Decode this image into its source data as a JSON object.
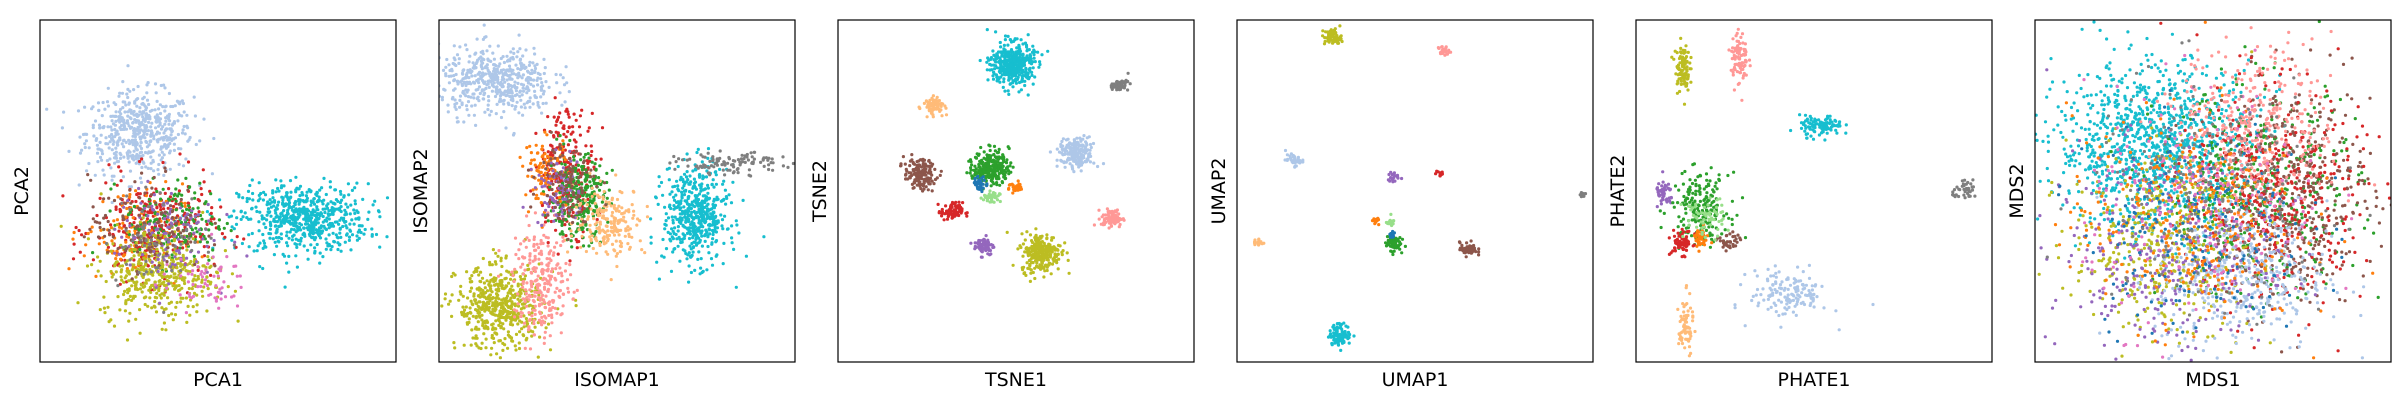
{
  "chart_data": [
    {
      "type": "scatter",
      "title": "",
      "xlabel": "PCA1",
      "ylabel": "PCA2",
      "xlim": [
        0,
        10
      ],
      "ylim": [
        0,
        10
      ],
      "grid": false,
      "legend": "none",
      "clusters": [
        {
          "color": "#aec7e8",
          "center": [
            2.8,
            6.7
          ],
          "spread": [
            0.75,
            0.6
          ],
          "count": 520
        },
        {
          "color": "#17becf",
          "center": [
            7.4,
            4.2
          ],
          "spread": [
            0.9,
            0.5
          ],
          "count": 620
        },
        {
          "color": "#d62728",
          "center": [
            3.2,
            3.9
          ],
          "spread": [
            0.85,
            0.75
          ],
          "count": 300
        },
        {
          "color": "#ff7f0e",
          "center": [
            2.6,
            3.8
          ],
          "spread": [
            0.7,
            0.7
          ],
          "count": 120
        },
        {
          "color": "#2ca02c",
          "center": [
            3.8,
            4.1
          ],
          "spread": [
            0.7,
            0.6
          ],
          "count": 150
        },
        {
          "color": "#bcbd22",
          "center": [
            3.3,
            2.6
          ],
          "spread": [
            0.8,
            0.65
          ],
          "count": 420
        },
        {
          "color": "#9467bd",
          "center": [
            3.5,
            3.8
          ],
          "spread": [
            0.7,
            0.7
          ],
          "count": 120
        },
        {
          "color": "#e377c2",
          "center": [
            4.6,
            2.3
          ],
          "spread": [
            0.6,
            0.4
          ],
          "count": 60
        },
        {
          "color": "#8c564b",
          "center": [
            3.0,
            4.0
          ],
          "spread": [
            0.8,
            0.7
          ],
          "count": 120
        },
        {
          "color": "#7f7f7f",
          "center": [
            3.4,
            3.6
          ],
          "spread": [
            0.8,
            0.7
          ],
          "count": 60
        }
      ]
    },
    {
      "type": "scatter",
      "title": "",
      "xlabel": "ISOMAP1",
      "ylabel": "ISOMAP2",
      "xlim": [
        0,
        10
      ],
      "ylim": [
        0,
        10
      ],
      "grid": false,
      "legend": "none",
      "clusters": [
        {
          "color": "#aec7e8",
          "center": [
            1.6,
            8.2
          ],
          "spread": [
            0.8,
            0.5
          ],
          "count": 500
        },
        {
          "color": "#17becf",
          "center": [
            7.2,
            4.3
          ],
          "spread": [
            0.45,
            0.7
          ],
          "count": 520
        },
        {
          "color": "#7f7f7f",
          "center": [
            8.3,
            5.8
          ],
          "spread": [
            0.8,
            0.15
          ],
          "count": 110
        },
        {
          "color": "#d62728",
          "center": [
            3.6,
            5.6
          ],
          "spread": [
            0.4,
            0.9
          ],
          "count": 280
        },
        {
          "color": "#2ca02c",
          "center": [
            3.9,
            4.8
          ],
          "spread": [
            0.4,
            0.6
          ],
          "count": 280
        },
        {
          "color": "#ff7f0e",
          "center": [
            3.0,
            5.6
          ],
          "spread": [
            0.3,
            0.5
          ],
          "count": 100
        },
        {
          "color": "#ffbb78",
          "center": [
            4.8,
            4.1
          ],
          "spread": [
            0.5,
            0.5
          ],
          "count": 200
        },
        {
          "color": "#bcbd22",
          "center": [
            1.7,
            1.6
          ],
          "spread": [
            0.6,
            0.6
          ],
          "count": 520
        },
        {
          "color": "#ff9896",
          "center": [
            2.9,
            2.3
          ],
          "spread": [
            0.4,
            0.8
          ],
          "count": 260
        },
        {
          "color": "#9467bd",
          "center": [
            3.3,
            5.0
          ],
          "spread": [
            0.3,
            0.5
          ],
          "count": 80
        },
        {
          "color": "#8c564b",
          "center": [
            3.6,
            5.3
          ],
          "spread": [
            0.4,
            0.6
          ],
          "count": 100
        }
      ]
    },
    {
      "type": "scatter",
      "title": "",
      "xlabel": "TSNE1",
      "ylabel": "TSNE2",
      "xlim": [
        0,
        10
      ],
      "ylim": [
        0,
        10
      ],
      "grid": false,
      "legend": "none",
      "clusters": [
        {
          "color": "#17becf",
          "center": [
            4.9,
            8.7
          ],
          "spread": [
            0.3,
            0.32
          ],
          "count": 420
        },
        {
          "color": "#7f7f7f",
          "center": [
            7.9,
            8.1
          ],
          "spread": [
            0.13,
            0.08
          ],
          "count": 60
        },
        {
          "color": "#ffbb78",
          "center": [
            2.7,
            7.5
          ],
          "spread": [
            0.15,
            0.12
          ],
          "count": 80
        },
        {
          "color": "#8c564b",
          "center": [
            2.3,
            5.5
          ],
          "spread": [
            0.22,
            0.22
          ],
          "count": 160
        },
        {
          "color": "#2ca02c",
          "center": [
            4.3,
            5.7
          ],
          "spread": [
            0.25,
            0.25
          ],
          "count": 260
        },
        {
          "color": "#1f77b4",
          "center": [
            4.0,
            5.2
          ],
          "spread": [
            0.1,
            0.1
          ],
          "count": 40
        },
        {
          "color": "#aec7e8",
          "center": [
            6.7,
            6.1
          ],
          "spread": [
            0.25,
            0.22
          ],
          "count": 200
        },
        {
          "color": "#ff7f0e",
          "center": [
            5.0,
            5.1
          ],
          "spread": [
            0.1,
            0.08
          ],
          "count": 30
        },
        {
          "color": "#98df8a",
          "center": [
            4.3,
            4.8
          ],
          "spread": [
            0.12,
            0.1
          ],
          "count": 40
        },
        {
          "color": "#d62728",
          "center": [
            3.2,
            4.4
          ],
          "spread": [
            0.15,
            0.13
          ],
          "count": 80
        },
        {
          "color": "#ff9896",
          "center": [
            7.7,
            4.2
          ],
          "spread": [
            0.15,
            0.13
          ],
          "count": 80
        },
        {
          "color": "#9467bd",
          "center": [
            4.1,
            3.4
          ],
          "spread": [
            0.14,
            0.14
          ],
          "count": 70
        },
        {
          "color": "#bcbd22",
          "center": [
            5.7,
            3.2
          ],
          "spread": [
            0.28,
            0.28
          ],
          "count": 260
        }
      ]
    },
    {
      "type": "scatter",
      "title": "",
      "xlabel": "UMAP1",
      "ylabel": "UMAP2",
      "xlim": [
        0,
        10
      ],
      "ylim": [
        0,
        10
      ],
      "grid": false,
      "legend": "none",
      "clusters": [
        {
          "color": "#bcbd22",
          "center": [
            2.7,
            9.5
          ],
          "spread": [
            0.12,
            0.12
          ],
          "count": 80
        },
        {
          "color": "#ff9896",
          "center": [
            5.8,
            9.1
          ],
          "spread": [
            0.08,
            0.07
          ],
          "count": 25
        },
        {
          "color": "#aec7e8",
          "center": [
            1.6,
            5.9
          ],
          "spread": [
            0.12,
            0.08
          ],
          "count": 40
        },
        {
          "color": "#9467bd",
          "center": [
            4.4,
            5.4
          ],
          "spread": [
            0.08,
            0.08
          ],
          "count": 20
        },
        {
          "color": "#d62728",
          "center": [
            5.7,
            5.5
          ],
          "spread": [
            0.06,
            0.06
          ],
          "count": 15
        },
        {
          "color": "#7f7f7f",
          "center": [
            9.7,
            4.9
          ],
          "spread": [
            0.05,
            0.05
          ],
          "count": 10
        },
        {
          "color": "#2ca02c",
          "center": [
            4.4,
            3.5
          ],
          "spread": [
            0.1,
            0.12
          ],
          "count": 80
        },
        {
          "color": "#1f77b4",
          "center": [
            4.35,
            3.7
          ],
          "spread": [
            0.05,
            0.06
          ],
          "count": 20
        },
        {
          "color": "#98df8a",
          "center": [
            4.3,
            4.1
          ],
          "spread": [
            0.06,
            0.06
          ],
          "count": 20
        },
        {
          "color": "#ff7f0e",
          "center": [
            3.9,
            4.1
          ],
          "spread": [
            0.05,
            0.05
          ],
          "count": 15
        },
        {
          "color": "#8c564b",
          "center": [
            6.5,
            3.3
          ],
          "spread": [
            0.12,
            0.1
          ],
          "count": 50
        },
        {
          "color": "#ffbb78",
          "center": [
            0.6,
            3.5
          ],
          "spread": [
            0.07,
            0.06
          ],
          "count": 20
        },
        {
          "color": "#17becf",
          "center": [
            2.9,
            0.8
          ],
          "spread": [
            0.15,
            0.15
          ],
          "count": 110
        }
      ]
    },
    {
      "type": "scatter",
      "title": "",
      "xlabel": "PHATE1",
      "ylabel": "PHATE2",
      "xlim": [
        0,
        10
      ],
      "ylim": [
        0,
        10
      ],
      "grid": false,
      "legend": "none",
      "clusters": [
        {
          "color": "#bcbd22",
          "center": [
            1.3,
            8.6
          ],
          "spread": [
            0.1,
            0.35
          ],
          "count": 100
        },
        {
          "color": "#ff9896",
          "center": [
            2.9,
            8.9
          ],
          "spread": [
            0.12,
            0.4
          ],
          "count": 90
        },
        {
          "color": "#17becf",
          "center": [
            5.2,
            6.9
          ],
          "spread": [
            0.3,
            0.15
          ],
          "count": 110
        },
        {
          "color": "#7f7f7f",
          "center": [
            9.3,
            5.0
          ],
          "spread": [
            0.2,
            0.12
          ],
          "count": 40
        },
        {
          "color": "#9467bd",
          "center": [
            0.8,
            4.9
          ],
          "spread": [
            0.12,
            0.2
          ],
          "count": 50
        },
        {
          "color": "#2ca02c",
          "center": [
            1.8,
            4.5
          ],
          "spread": [
            0.4,
            0.5
          ],
          "count": 200
        },
        {
          "color": "#d62728",
          "center": [
            1.3,
            3.5
          ],
          "spread": [
            0.15,
            0.18
          ],
          "count": 70
        },
        {
          "color": "#ff7f0e",
          "center": [
            1.8,
            3.6
          ],
          "spread": [
            0.12,
            0.15
          ],
          "count": 40
        },
        {
          "color": "#8c564b",
          "center": [
            2.6,
            3.5
          ],
          "spread": [
            0.15,
            0.15
          ],
          "count": 40
        },
        {
          "color": "#aec7e8",
          "center": [
            4.3,
            2.0
          ],
          "spread": [
            0.55,
            0.35
          ],
          "count": 150
        },
        {
          "color": "#ffbb78",
          "center": [
            1.4,
            1.0
          ],
          "spread": [
            0.1,
            0.45
          ],
          "count": 70
        },
        {
          "color": "#98df8a",
          "center": [
            1.9,
            4.2
          ],
          "spread": [
            0.3,
            0.3
          ],
          "count": 60
        }
      ]
    },
    {
      "type": "scatter",
      "title": "",
      "xlabel": "MDS1",
      "ylabel": "MDS2",
      "xlim": [
        0,
        10
      ],
      "ylim": [
        0,
        10
      ],
      "grid": false,
      "legend": "none",
      "clusters": [
        {
          "color": "#17becf",
          "center": [
            3.4,
            6.3
          ],
          "spread": [
            1.4,
            1.2
          ],
          "count": 1100
        },
        {
          "color": "#2ca02c",
          "center": [
            6.3,
            5.0
          ],
          "spread": [
            1.4,
            1.5
          ],
          "count": 420
        },
        {
          "color": "#8c564b",
          "center": [
            7.3,
            5.0
          ],
          "spread": [
            1.1,
            1.6
          ],
          "count": 420
        },
        {
          "color": "#d62728",
          "center": [
            6.6,
            4.8
          ],
          "spread": [
            1.3,
            1.6
          ],
          "count": 420
        },
        {
          "color": "#bcbd22",
          "center": [
            3.6,
            3.5
          ],
          "spread": [
            1.3,
            1.3
          ],
          "count": 420
        },
        {
          "color": "#ff9896",
          "center": [
            6.2,
            6.8
          ],
          "spread": [
            1.1,
            1.2
          ],
          "count": 360
        },
        {
          "color": "#aec7e8",
          "center": [
            5.8,
            2.5
          ],
          "spread": [
            1.2,
            1.1
          ],
          "count": 420
        },
        {
          "color": "#9467bd",
          "center": [
            3.5,
            3.2
          ],
          "spread": [
            1.6,
            1.5
          ],
          "count": 300
        },
        {
          "color": "#ff7f0e",
          "center": [
            4.2,
            4.2
          ],
          "spread": [
            1.6,
            1.6
          ],
          "count": 300
        },
        {
          "color": "#1f77b4",
          "center": [
            4.5,
            4.0
          ],
          "spread": [
            1.6,
            1.6
          ],
          "count": 200
        },
        {
          "color": "#e377c2",
          "center": [
            4.8,
            4.5
          ],
          "spread": [
            1.7,
            1.7
          ],
          "count": 200
        },
        {
          "color": "#7f7f7f",
          "center": [
            5.0,
            5.0
          ],
          "spread": [
            1.7,
            1.7
          ],
          "count": 200
        }
      ]
    }
  ]
}
